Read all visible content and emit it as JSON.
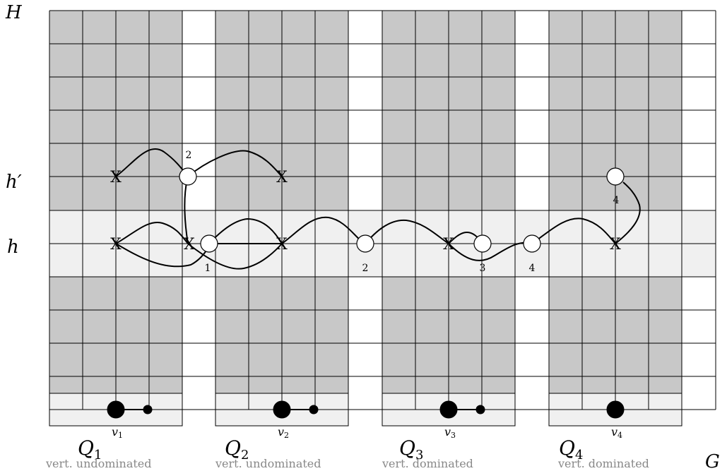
{
  "axis_labels": {
    "H": "H",
    "G": "G",
    "h_prime": "h′",
    "h": "h"
  },
  "blocks": [
    {
      "id": "q1",
      "q_label": "Q",
      "q_sub": "1",
      "vertex": "v",
      "vertex_sub": "1",
      "caption": "vert. undominated"
    },
    {
      "id": "q2",
      "q_label": "Q",
      "q_sub": "2",
      "vertex": "v",
      "vertex_sub": "2",
      "caption": "vert. undominated"
    },
    {
      "id": "q3",
      "q_label": "Q",
      "q_sub": "3",
      "vertex": "v",
      "vertex_sub": "3",
      "caption": "vert. dominated"
    },
    {
      "id": "q4",
      "q_label": "Q",
      "q_sub": "4",
      "vertex": "v",
      "vertex_sub": "4",
      "caption": "vert. dominated"
    }
  ],
  "markers": {
    "x_symbol": "X",
    "circle_labels": [
      "2",
      "1",
      "2",
      "3",
      "4",
      "4"
    ]
  },
  "colors": {
    "dark_fill": "#c8c8c8",
    "light_fill": "#f0f0f0",
    "grid_line": "#000000",
    "caption": "#888888"
  }
}
